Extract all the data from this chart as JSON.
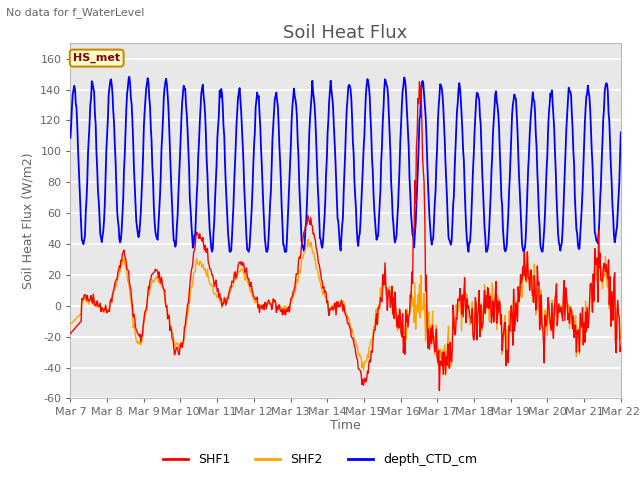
{
  "title": "Soil Heat Flux",
  "ylabel": "Soil Heat Flux (W/m2)",
  "xlabel": "Time",
  "top_note": "No data for f_WaterLevel",
  "box_label": "HS_met",
  "ylim": [
    -60,
    170
  ],
  "yticks": [
    -60,
    -40,
    -20,
    0,
    20,
    40,
    60,
    80,
    100,
    120,
    140,
    160
  ],
  "xtick_labels": [
    "Mar 7",
    "Mar 8",
    "Mar 9",
    "Mar 10",
    "Mar 11",
    "Mar 12",
    "Mar 13",
    "Mar 14",
    "Mar 15",
    "Mar 16",
    "Mar 17",
    "Mar 18",
    "Mar 19",
    "Mar 20",
    "Mar 21",
    "Mar 22"
  ],
  "line_colors": {
    "SHF1": "#FF0000",
    "SHF2": "#FFA500",
    "depth_CTD_cm": "#0000FF"
  },
  "line_widths": {
    "SHF1": 1.0,
    "SHF2": 1.0,
    "depth_CTD_cm": 1.3
  },
  "plot_bg_color": "#E8E8E8",
  "grid_color": "#D0D0D0",
  "title_fontsize": 13,
  "label_fontsize": 9,
  "tick_fontsize": 8,
  "n_days": 15,
  "n_points": 720
}
